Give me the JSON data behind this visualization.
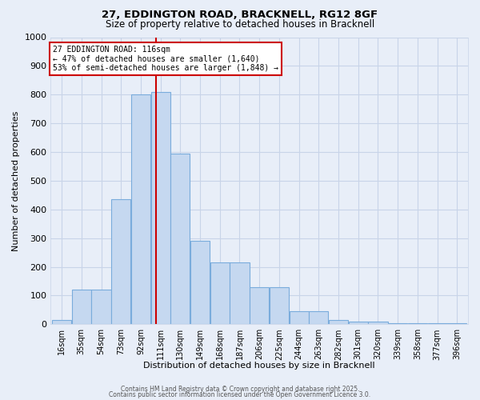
{
  "title_line1": "27, EDDINGTON ROAD, BRACKNELL, RG12 8GF",
  "title_line2": "Size of property relative to detached houses in Bracknell",
  "xlabel": "Distribution of detached houses by size in Bracknell",
  "ylabel": "Number of detached properties",
  "bin_labels": [
    "16sqm",
    "35sqm",
    "54sqm",
    "73sqm",
    "92sqm",
    "111sqm",
    "130sqm",
    "149sqm",
    "168sqm",
    "187sqm",
    "206sqm",
    "225sqm",
    "244sqm",
    "263sqm",
    "282sqm",
    "301sqm",
    "320sqm",
    "339sqm",
    "358sqm",
    "377sqm",
    "396sqm"
  ],
  "bin_edges": [
    16,
    35,
    54,
    73,
    92,
    111,
    130,
    149,
    168,
    187,
    206,
    225,
    244,
    263,
    282,
    301,
    320,
    339,
    358,
    377,
    396
  ],
  "bar_heights": [
    15,
    120,
    120,
    435,
    800,
    810,
    595,
    290,
    215,
    215,
    130,
    130,
    45,
    45,
    15,
    10,
    10,
    5,
    5,
    5,
    5
  ],
  "bar_color": "#c5d8f0",
  "bar_edge_color": "#7aacdc",
  "red_line_x": 116,
  "ylim": [
    0,
    1000
  ],
  "yticks": [
    0,
    100,
    200,
    300,
    400,
    500,
    600,
    700,
    800,
    900,
    1000
  ],
  "grid_color": "#c8d4e8",
  "bg_color": "#e8eef8",
  "annotation_text": "27 EDDINGTON ROAD: 116sqm\n← 47% of detached houses are smaller (1,640)\n53% of semi-detached houses are larger (1,848) →",
  "annotation_box_color": "#ffffff",
  "annotation_box_edge": "#cc0000",
  "footer_line1": "Contains HM Land Registry data © Crown copyright and database right 2025.",
  "footer_line2": "Contains public sector information licensed under the Open Government Licence 3.0."
}
